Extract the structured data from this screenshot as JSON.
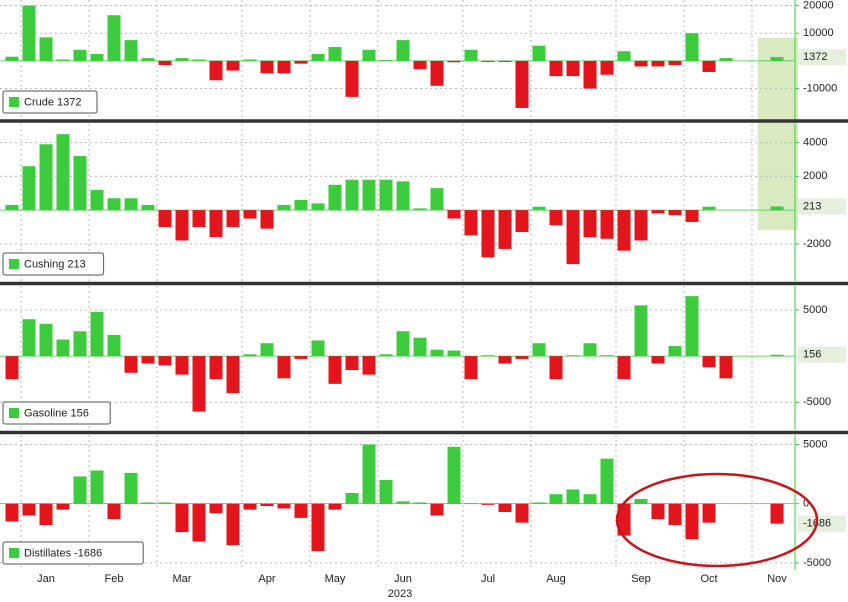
{
  "chart_data": [
    {
      "type": "bar",
      "legend": "Crude 1372",
      "ylim": [
        -21000,
        22000
      ],
      "yticks": [
        -10000,
        10000,
        20000
      ],
      "colors": {
        "positive": "#3ccb3c",
        "negative": "#e3141b"
      },
      "values": [
        1500,
        20000,
        8500,
        500,
        4000,
        2500,
        16500,
        7500,
        1000,
        -1500,
        1000,
        500,
        -7000,
        -3500,
        500,
        -4500,
        -4500,
        -1000,
        2500,
        5000,
        -13000,
        4000,
        300,
        7500,
        -3000,
        -9000,
        -500,
        4000,
        -300,
        -300,
        -17000,
        5500,
        -5500,
        -5500,
        -10000,
        -5000,
        3500,
        -2000,
        -2000,
        -1500,
        10000,
        -4000,
        1000,
        null,
        null,
        1372
      ]
    },
    {
      "type": "bar",
      "legend": "Cushing 213",
      "ylim": [
        -4200,
        5100
      ],
      "yticks": [
        -2000,
        2000,
        4000
      ],
      "colors": {
        "positive": "#3ccb3c",
        "negative": "#e3141b"
      },
      "values": [
        300,
        2600,
        3900,
        4500,
        3200,
        1200,
        700,
        700,
        300,
        -1000,
        -1800,
        -1000,
        -1600,
        -1000,
        -500,
        -1100,
        300,
        600,
        400,
        1500,
        1800,
        1800,
        1800,
        1700,
        100,
        1300,
        -500,
        -1500,
        -2800,
        -2300,
        -1300,
        200,
        -900,
        -3200,
        -1600,
        -1700,
        -2400,
        -1800,
        -200,
        -300,
        -700,
        200,
        null,
        null,
        null,
        213
      ]
    },
    {
      "type": "bar",
      "legend": "Gasoline 156",
      "ylim": [
        -8000,
        7600
      ],
      "yticks": [
        -5000,
        5000
      ],
      "colors": {
        "positive": "#3ccb3c",
        "negative": "#e3141b"
      },
      "values": [
        -2500,
        4000,
        3500,
        1800,
        2700,
        4800,
        2300,
        -1800,
        -800,
        -1000,
        -2000,
        -6000,
        -2500,
        -4000,
        200,
        1400,
        -2400,
        -300,
        1700,
        -3000,
        -1500,
        -2000,
        200,
        2700,
        2000,
        700,
        600,
        -2500,
        100,
        -800,
        -300,
        1400,
        -2500,
        100,
        1400,
        100,
        -2500,
        5500,
        -800,
        1100,
        6500,
        -1200,
        -2400,
        null,
        null,
        156
      ]
    },
    {
      "type": "bar",
      "legend": "Distillates -1686",
      "ylim": [
        -5600,
        5800
      ],
      "yticks": [
        -5000,
        0,
        5000
      ],
      "colors": {
        "positive": "#3ccb3c",
        "negative": "#e3141b"
      },
      "values": [
        -1500,
        -1000,
        -1800,
        -500,
        2300,
        2800,
        -1300,
        2600,
        100,
        100,
        -2400,
        -3200,
        -800,
        -3500,
        -500,
        -200,
        -400,
        -1200,
        -4000,
        -500,
        900,
        5000,
        2000,
        200,
        100,
        -1000,
        4800,
        50,
        -100,
        -700,
        -1600,
        100,
        800,
        1200,
        800,
        3800,
        -2700,
        400,
        -1300,
        -1800,
        -3000,
        -1600,
        null,
        null,
        null,
        -1686
      ],
      "categories": [
        null,
        null,
        "Jan",
        null,
        null,
        null,
        "Feb",
        null,
        null,
        null,
        "Mar",
        null,
        null,
        null,
        null,
        "Apr",
        null,
        null,
        null,
        "May",
        null,
        null,
        null,
        "Jun",
        null,
        null,
        null,
        null,
        "Jul",
        null,
        null,
        null,
        "Aug",
        null,
        null,
        null,
        null,
        "Sep",
        null,
        null,
        null,
        "Oct",
        null,
        null,
        null,
        "Nov"
      ],
      "xlabel": "2023"
    }
  ]
}
